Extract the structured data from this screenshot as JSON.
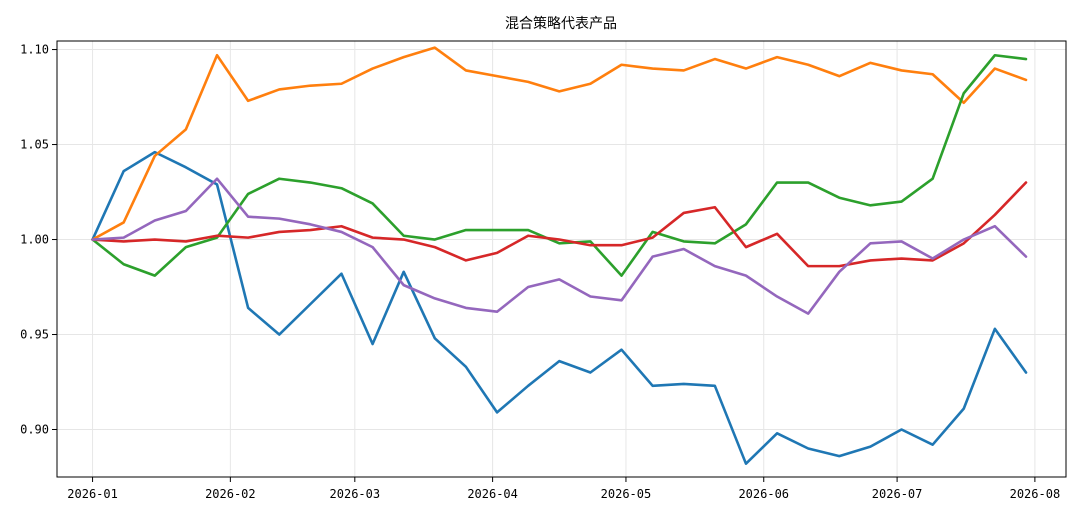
{
  "chart_data": {
    "type": "line",
    "title": "混合策略代表产品",
    "xlabel": "",
    "ylabel": "",
    "grid": true,
    "legend": "none",
    "xlim": [
      "2025-12-24",
      "2026-08-08"
    ],
    "ylim": [
      0.875,
      1.1045
    ],
    "x_ticks": [
      "2026-01-01",
      "2026-02-01",
      "2026-03-01",
      "2026-04-01",
      "2026-05-01",
      "2026-06-01",
      "2026-07-01",
      "2026-08-01"
    ],
    "x_tick_labels": [
      "2026-01",
      "2026-02",
      "2026-03",
      "2026-04",
      "2026-05",
      "2026-06",
      "2026-07",
      "2026-08"
    ],
    "y_ticks": [
      0.9,
      0.95,
      1.0,
      1.05,
      1.1
    ],
    "y_tick_labels": [
      "0.90",
      "0.95",
      "1.00",
      "1.05",
      "1.10"
    ],
    "x": [
      "2026-01-01",
      "2026-01-08",
      "2026-01-15",
      "2026-01-22",
      "2026-01-29",
      "2026-02-05",
      "2026-02-12",
      "2026-02-19",
      "2026-02-26",
      "2026-03-05",
      "2026-03-12",
      "2026-03-19",
      "2026-03-26",
      "2026-04-02",
      "2026-04-09",
      "2026-04-16",
      "2026-04-23",
      "2026-04-30",
      "2026-05-07",
      "2026-05-14",
      "2026-05-21",
      "2026-05-28",
      "2026-06-04",
      "2026-06-11",
      "2026-06-18",
      "2026-06-25",
      "2026-07-02",
      "2026-07-09",
      "2026-07-16",
      "2026-07-23",
      "2026-07-30"
    ],
    "series": [
      {
        "color": "#1f77b4",
        "values": [
          1.0,
          1.036,
          1.046,
          1.038,
          1.029,
          0.964,
          0.95,
          0.966,
          0.982,
          0.945,
          0.983,
          0.948,
          0.933,
          0.909,
          0.923,
          0.936,
          0.93,
          0.942,
          0.923,
          0.924,
          0.923,
          0.882,
          0.898,
          0.89,
          0.886,
          0.891,
          0.9,
          0.892,
          0.911,
          0.953,
          0.93
        ]
      },
      {
        "color": "#ff7f0e",
        "values": [
          1.0,
          1.009,
          1.044,
          1.058,
          1.097,
          1.073,
          1.079,
          1.081,
          1.082,
          1.09,
          1.096,
          1.101,
          1.089,
          1.086,
          1.083,
          1.078,
          1.082,
          1.092,
          1.09,
          1.089,
          1.095,
          1.09,
          1.096,
          1.092,
          1.086,
          1.093,
          1.089,
          1.087,
          1.072,
          1.09,
          1.084
        ]
      },
      {
        "color": "#2ca02c",
        "values": [
          1.0,
          0.987,
          0.981,
          0.996,
          1.001,
          1.024,
          1.032,
          1.03,
          1.027,
          1.019,
          1.002,
          1.0,
          1.005,
          1.005,
          1.005,
          0.998,
          0.999,
          0.981,
          1.004,
          0.999,
          0.998,
          1.008,
          1.03,
          1.03,
          1.022,
          1.018,
          1.02,
          1.032,
          1.077,
          1.097,
          1.095
        ]
      },
      {
        "color": "#d62728",
        "values": [
          1.0,
          0.999,
          1.0,
          0.999,
          1.002,
          1.001,
          1.004,
          1.005,
          1.007,
          1.001,
          1.0,
          0.996,
          0.989,
          0.993,
          1.002,
          1.0,
          0.997,
          0.997,
          1.001,
          1.014,
          1.017,
          0.996,
          1.003,
          0.986,
          0.986,
          0.989,
          0.99,
          0.989,
          0.998,
          1.013,
          1.03
        ]
      },
      {
        "color": "#9467bd",
        "values": [
          1.0,
          1.001,
          1.01,
          1.015,
          1.032,
          1.012,
          1.011,
          1.008,
          1.004,
          0.996,
          0.976,
          0.969,
          0.964,
          0.962,
          0.975,
          0.979,
          0.97,
          0.968,
          0.991,
          0.995,
          0.986,
          0.981,
          0.97,
          0.961,
          0.983,
          0.998,
          0.999,
          0.99,
          1.0,
          1.007,
          0.991
        ]
      }
    ]
  }
}
